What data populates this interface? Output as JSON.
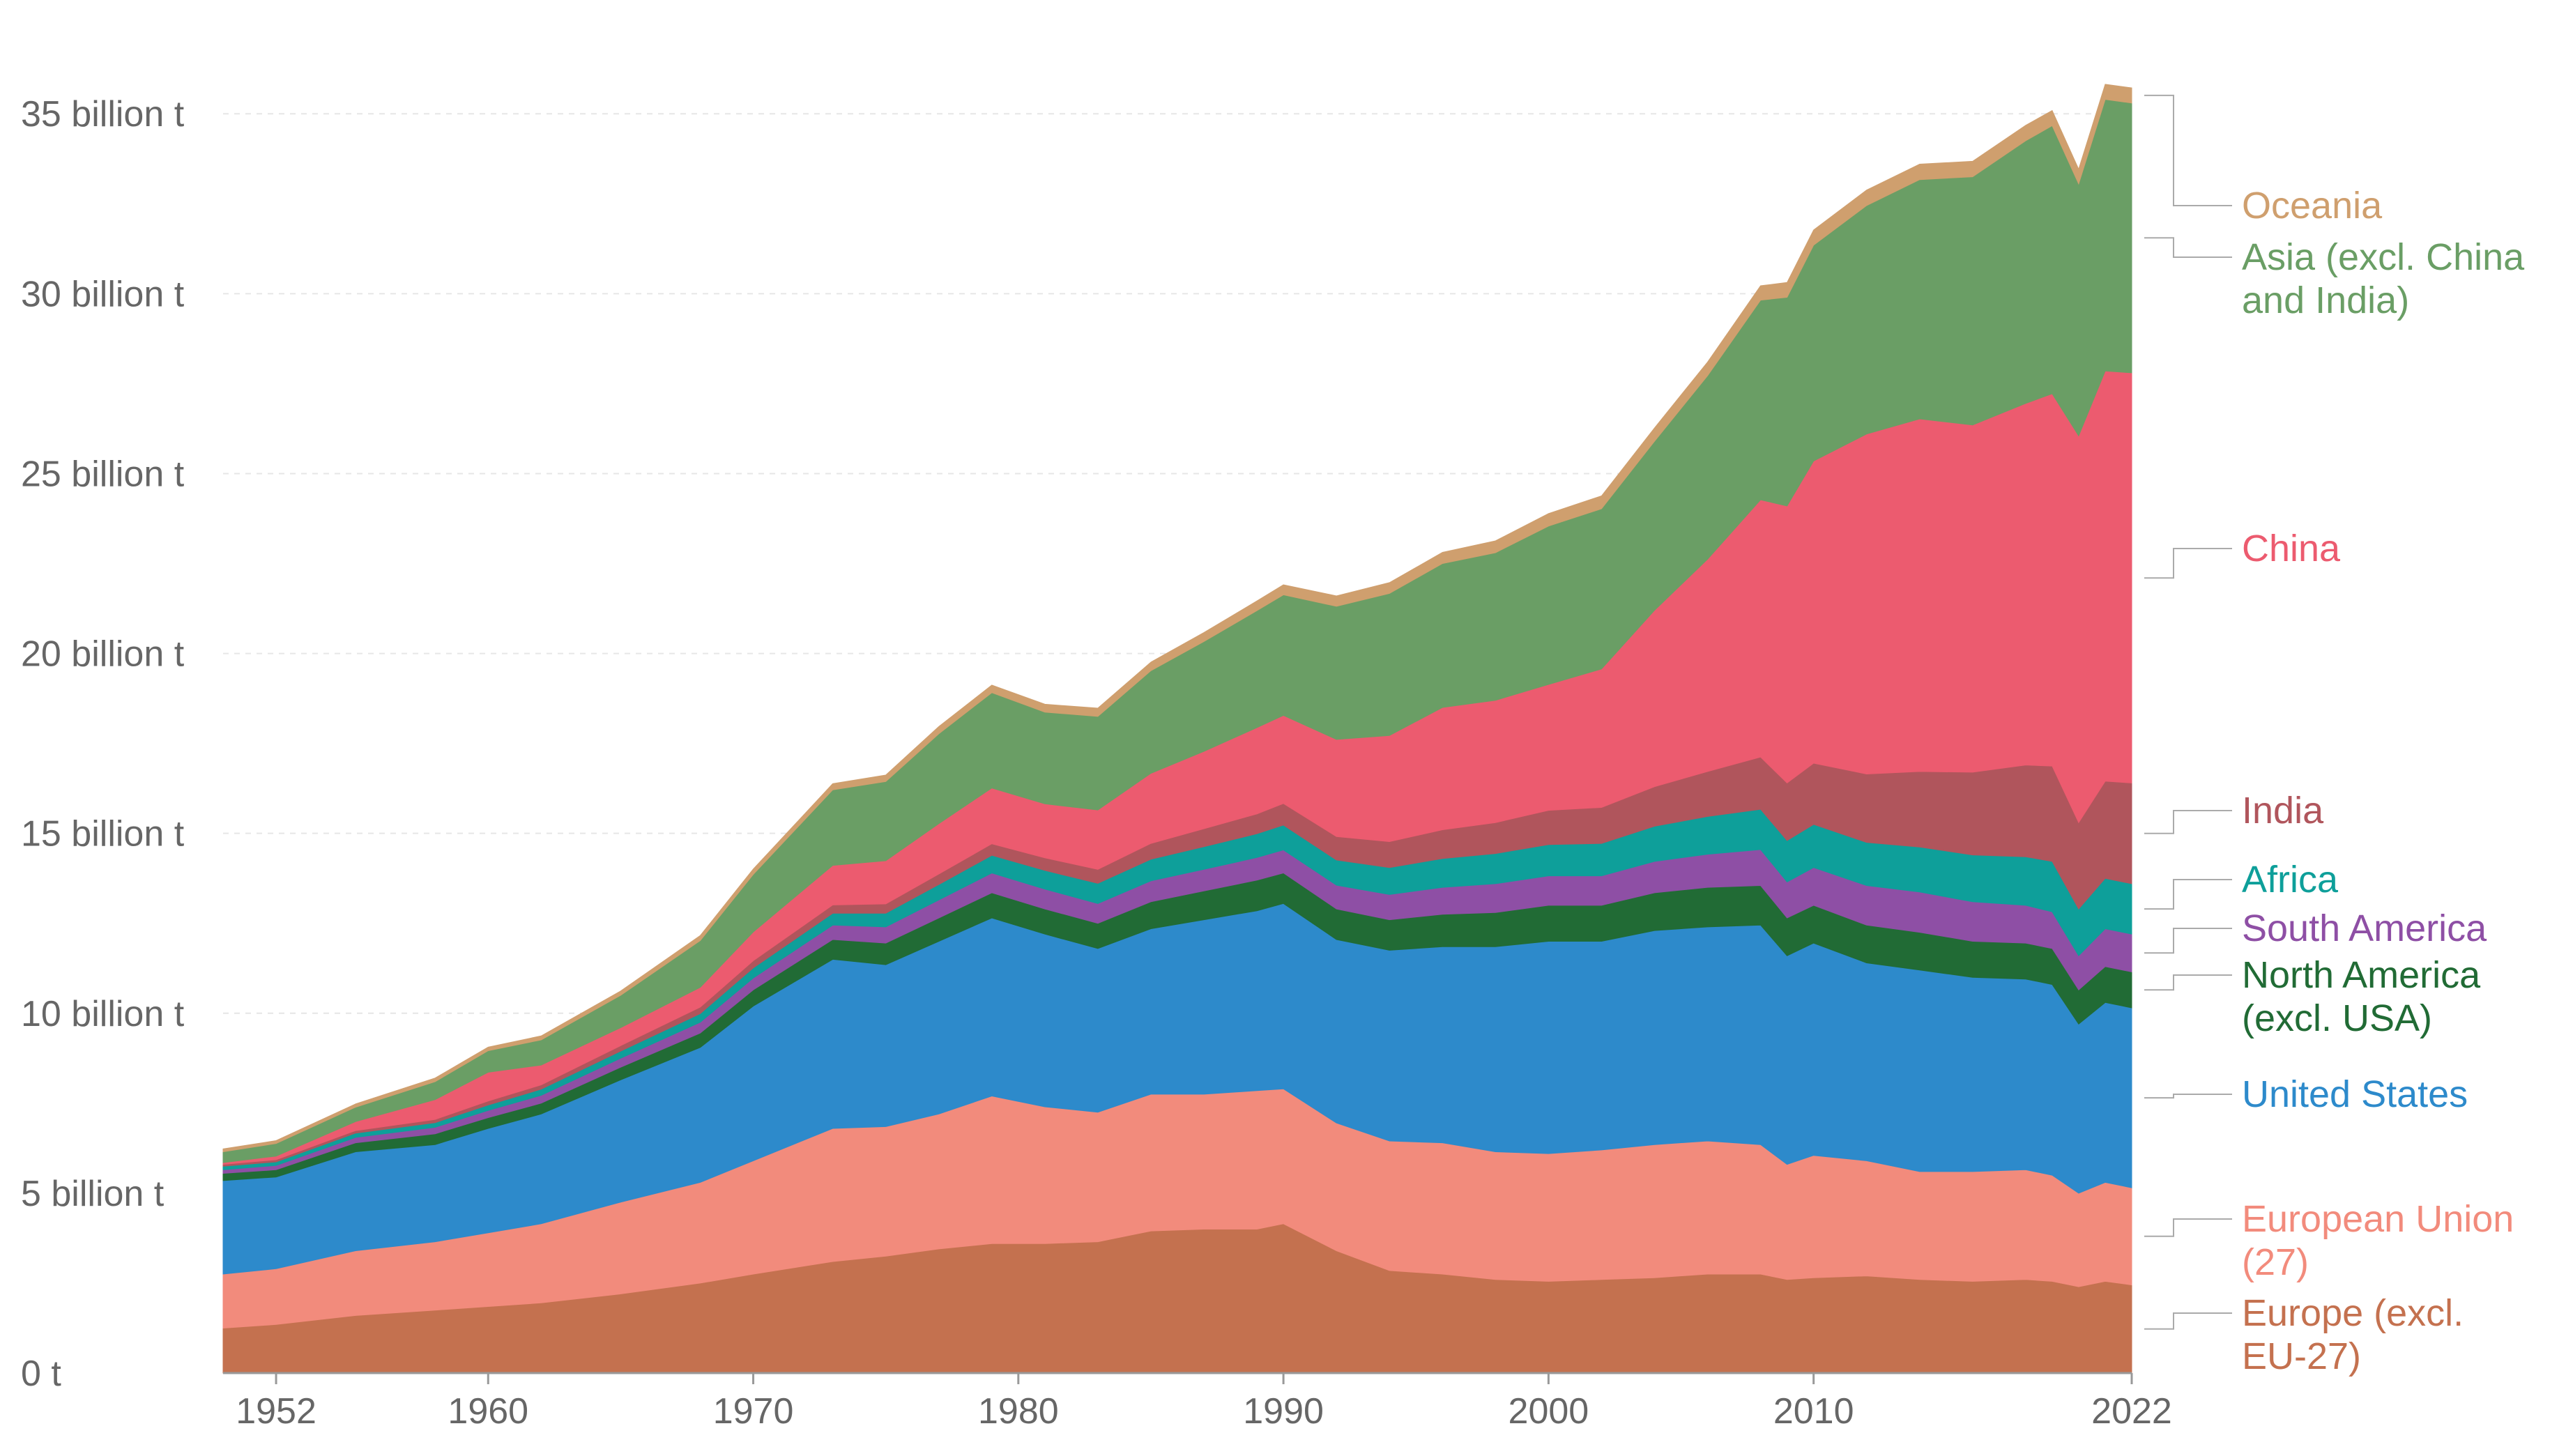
{
  "chart_data": {
    "type": "area",
    "stacked": true,
    "title": "",
    "xlabel": "",
    "ylabel": "",
    "xlim": [
      1950,
      2022
    ],
    "ylim": [
      0,
      37
    ],
    "x_ticks": [
      {
        "value": 1952,
        "label": "1952"
      },
      {
        "value": 1960,
        "label": "1960"
      },
      {
        "value": 1970,
        "label": "1970"
      },
      {
        "value": 1980,
        "label": "1980"
      },
      {
        "value": 1990,
        "label": "1990"
      },
      {
        "value": 2000,
        "label": "2000"
      },
      {
        "value": 2010,
        "label": "2010"
      },
      {
        "value": 2022,
        "label": "2022"
      }
    ],
    "y_ticks": [
      {
        "value": 0,
        "label": "0 t"
      },
      {
        "value": 5,
        "label": "5 billion t"
      },
      {
        "value": 10,
        "label": "10 billion t"
      },
      {
        "value": 15,
        "label": "15 billion t"
      },
      {
        "value": 20,
        "label": "20 billion t"
      },
      {
        "value": 25,
        "label": "25 billion t"
      },
      {
        "value": 30,
        "label": "30 billion t"
      },
      {
        "value": 35,
        "label": "35 billion t"
      }
    ],
    "x": [
      1950,
      1952,
      1955,
      1958,
      1960,
      1962,
      1965,
      1968,
      1970,
      1973,
      1975,
      1977,
      1979,
      1981,
      1983,
      1985,
      1987,
      1989,
      1990,
      1992,
      1994,
      1996,
      1998,
      2000,
      2002,
      2004,
      2006,
      2008,
      2009,
      2010,
      2012,
      2014,
      2016,
      2018,
      2019,
      2020,
      2021,
      2022
    ],
    "series": [
      {
        "name": "Europe (excl. EU-27)",
        "label": "Europe (excl.\nEU-27)",
        "color": "#c4714f",
        "values": [
          1.25,
          1.35,
          1.6,
          1.75,
          1.85,
          1.95,
          2.2,
          2.5,
          2.75,
          3.1,
          3.25,
          3.45,
          3.6,
          3.6,
          3.65,
          3.95,
          4.0,
          4.0,
          4.15,
          3.4,
          2.85,
          2.75,
          2.6,
          2.55,
          2.6,
          2.65,
          2.75,
          2.75,
          2.6,
          2.65,
          2.7,
          2.6,
          2.55,
          2.6,
          2.55,
          2.4,
          2.55,
          2.45
        ]
      },
      {
        "name": "European Union (27)",
        "label": "European Union\n(27)",
        "color": "#f28b7c",
        "values": [
          1.5,
          1.55,
          1.8,
          1.9,
          2.05,
          2.2,
          2.55,
          2.8,
          3.15,
          3.7,
          3.6,
          3.75,
          4.1,
          3.8,
          3.6,
          3.8,
          3.75,
          3.85,
          3.75,
          3.55,
          3.6,
          3.65,
          3.55,
          3.55,
          3.6,
          3.7,
          3.7,
          3.6,
          3.2,
          3.4,
          3.2,
          3.0,
          3.05,
          3.05,
          2.95,
          2.6,
          2.75,
          2.7
        ]
      },
      {
        "name": "United States",
        "label": "United States",
        "color": "#2d8acb",
        "values": [
          2.6,
          2.55,
          2.75,
          2.7,
          2.9,
          3.05,
          3.4,
          3.75,
          4.3,
          4.7,
          4.5,
          4.8,
          4.95,
          4.8,
          4.55,
          4.6,
          4.85,
          5.0,
          5.15,
          5.1,
          5.3,
          5.45,
          5.7,
          5.9,
          5.8,
          5.95,
          5.95,
          6.1,
          5.8,
          5.9,
          5.5,
          5.6,
          5.4,
          5.3,
          5.3,
          4.7,
          5.0,
          5.0
        ]
      },
      {
        "name": "North America (excl. USA)",
        "label": "North America\n(excl. USA)",
        "color": "#216b35",
        "values": [
          0.2,
          0.2,
          0.25,
          0.3,
          0.3,
          0.3,
          0.35,
          0.4,
          0.45,
          0.55,
          0.6,
          0.65,
          0.7,
          0.7,
          0.7,
          0.75,
          0.8,
          0.85,
          0.85,
          0.85,
          0.85,
          0.9,
          0.95,
          1.0,
          1.0,
          1.05,
          1.1,
          1.1,
          1.05,
          1.05,
          1.05,
          1.05,
          1.0,
          1.0,
          1.0,
          0.95,
          1.0,
          1.0
        ]
      },
      {
        "name": "South America",
        "label": "South America",
        "color": "#8e4fa5",
        "values": [
          0.1,
          0.12,
          0.15,
          0.18,
          0.2,
          0.22,
          0.25,
          0.3,
          0.33,
          0.4,
          0.45,
          0.5,
          0.55,
          0.55,
          0.55,
          0.58,
          0.6,
          0.63,
          0.64,
          0.66,
          0.7,
          0.75,
          0.8,
          0.82,
          0.82,
          0.87,
          0.92,
          1.0,
          1.0,
          1.05,
          1.1,
          1.12,
          1.1,
          1.05,
          1.02,
          0.95,
          1.05,
          1.05
        ]
      },
      {
        "name": "Africa",
        "label": "Africa",
        "color": "#0e9f9a",
        "values": [
          0.1,
          0.1,
          0.12,
          0.13,
          0.15,
          0.17,
          0.2,
          0.24,
          0.28,
          0.33,
          0.38,
          0.43,
          0.49,
          0.52,
          0.56,
          0.6,
          0.63,
          0.66,
          0.69,
          0.7,
          0.75,
          0.8,
          0.84,
          0.87,
          0.9,
          0.98,
          1.05,
          1.12,
          1.15,
          1.2,
          1.2,
          1.25,
          1.3,
          1.35,
          1.4,
          1.3,
          1.4,
          1.4
        ]
      },
      {
        "name": "India",
        "label": "India",
        "color": "#b0555c",
        "values": [
          0.05,
          0.06,
          0.07,
          0.09,
          0.11,
          0.12,
          0.15,
          0.18,
          0.2,
          0.23,
          0.26,
          0.29,
          0.32,
          0.35,
          0.39,
          0.44,
          0.5,
          0.55,
          0.6,
          0.65,
          0.72,
          0.8,
          0.86,
          0.95,
          1.0,
          1.1,
          1.25,
          1.45,
          1.6,
          1.7,
          1.9,
          2.1,
          2.3,
          2.55,
          2.65,
          2.4,
          2.7,
          2.8
        ]
      },
      {
        "name": "China",
        "label": "China",
        "color": "#ec5b6f",
        "values": [
          0.05,
          0.1,
          0.25,
          0.55,
          0.8,
          0.55,
          0.5,
          0.55,
          0.8,
          1.1,
          1.2,
          1.4,
          1.55,
          1.5,
          1.65,
          1.95,
          2.15,
          2.4,
          2.45,
          2.7,
          2.95,
          3.4,
          3.4,
          3.5,
          3.85,
          4.9,
          5.9,
          7.15,
          7.7,
          8.4,
          9.45,
          9.8,
          9.65,
          10.05,
          10.35,
          10.75,
          11.4,
          11.4
        ]
      },
      {
        "name": "Asia (excl. China and India)",
        "label": "Asia (excl. China\nand India)",
        "color": "#6a9e65",
        "values": [
          0.3,
          0.35,
          0.4,
          0.5,
          0.6,
          0.7,
          0.9,
          1.3,
          1.6,
          2.1,
          2.2,
          2.5,
          2.65,
          2.55,
          2.6,
          2.85,
          3.05,
          3.25,
          3.35,
          3.7,
          3.95,
          4.0,
          4.1,
          4.4,
          4.45,
          4.7,
          5.1,
          5.55,
          5.8,
          6.0,
          6.35,
          6.65,
          6.9,
          7.3,
          7.45,
          7.0,
          7.55,
          7.5
        ]
      },
      {
        "name": "Oceania",
        "label": "Oceania",
        "color": "#cf9f6e",
        "values": [
          0.08,
          0.08,
          0.09,
          0.1,
          0.1,
          0.11,
          0.12,
          0.14,
          0.15,
          0.17,
          0.18,
          0.2,
          0.21,
          0.22,
          0.23,
          0.24,
          0.25,
          0.27,
          0.28,
          0.29,
          0.3,
          0.31,
          0.33,
          0.35,
          0.36,
          0.37,
          0.38,
          0.4,
          0.41,
          0.42,
          0.43,
          0.43,
          0.43,
          0.43,
          0.42,
          0.41,
          0.42,
          0.42
        ]
      }
    ]
  }
}
